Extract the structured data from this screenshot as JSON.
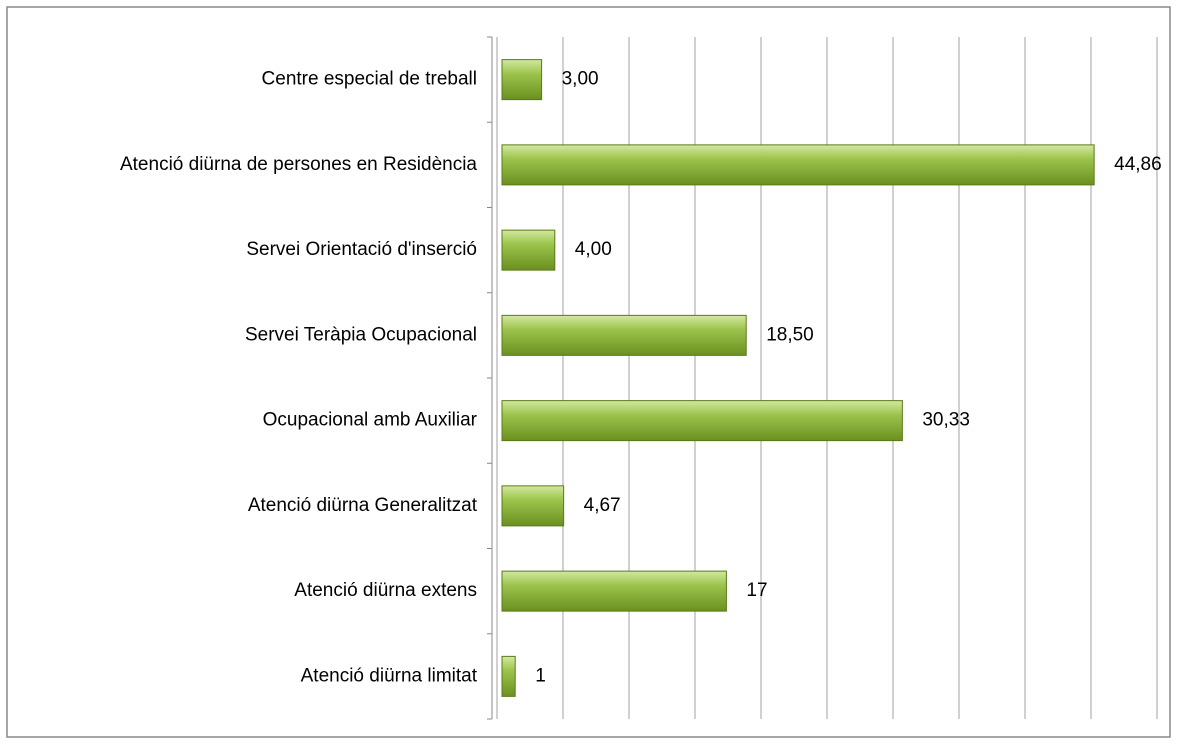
{
  "chart_data": {
    "type": "bar",
    "orientation": "horizontal",
    "categories": [
      "Centre especial de treball",
      "Atenció diürna de persones en Residència",
      "Servei Orientació d'inserció",
      "Servei Teràpia Ocupacional",
      "Ocupacional amb Auxiliar",
      "Atenció diürna Generalitzat",
      "Atenció diürna extens",
      "Atenció diürna limitat"
    ],
    "values": [
      3,
      44.86,
      4,
      18.5,
      30.33,
      4.67,
      17,
      1
    ],
    "value_labels": [
      "3,00",
      "44,86",
      "4,00",
      "18,50",
      "30,33",
      "4,67",
      "17",
      "1"
    ],
    "color": "#8cb43c",
    "xlim": [
      0,
      50
    ],
    "xticks": [
      0,
      5,
      10,
      15,
      20,
      25,
      30,
      35,
      40,
      45,
      50
    ],
    "grid": true
  }
}
